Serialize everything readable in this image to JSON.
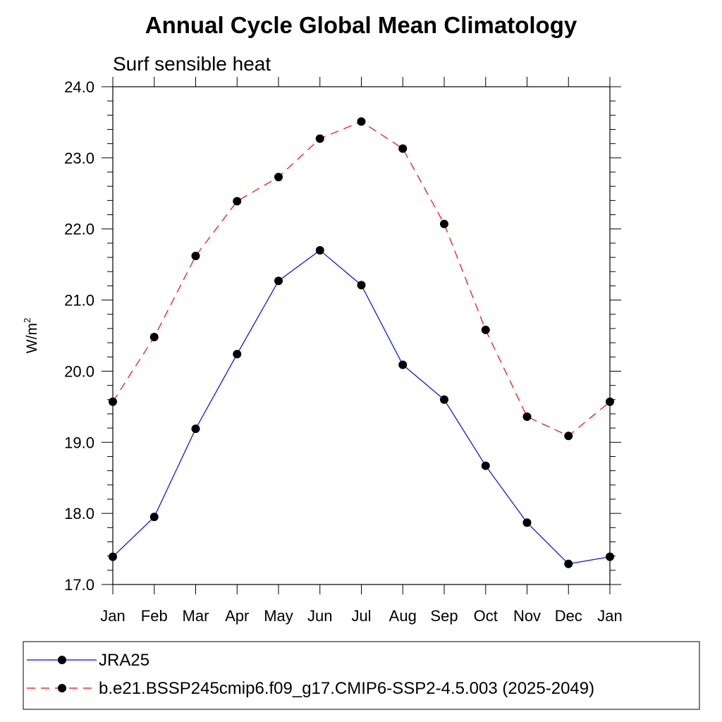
{
  "chart_data": {
    "type": "line",
    "title": "Annual Cycle Global Mean Climatology",
    "subtitle": "Surf sensible heat",
    "ylabel": "W/m",
    "ylabel_sup": "2",
    "ylim": [
      17.0,
      24.0
    ],
    "yticks": [
      "17.0",
      "18.0",
      "19.0",
      "20.0",
      "21.0",
      "22.0",
      "23.0",
      "24.0"
    ],
    "categories": [
      "Jan",
      "Feb",
      "Mar",
      "Apr",
      "May",
      "Jun",
      "Jul",
      "Aug",
      "Sep",
      "Oct",
      "Nov",
      "Dec",
      "Jan"
    ],
    "series": [
      {
        "name": "JRA25",
        "color": "#0000ff",
        "dash": "solid",
        "values": [
          17.39,
          17.95,
          19.19,
          20.24,
          21.27,
          21.7,
          21.21,
          20.09,
          19.6,
          18.67,
          17.87,
          17.29,
          17.39
        ]
      },
      {
        "name": "b.e21.BSSP245cmip6.f09_g17.CMIP6-SSP2-4.5.003 (2025-2049)",
        "color": "#ff0000",
        "dash": "dashed",
        "values": [
          19.57,
          20.48,
          21.62,
          22.39,
          22.73,
          23.27,
          23.51,
          23.13,
          22.07,
          20.58,
          19.36,
          19.09,
          19.57
        ]
      }
    ],
    "legend": "bottom",
    "marker_color": "#000000"
  }
}
